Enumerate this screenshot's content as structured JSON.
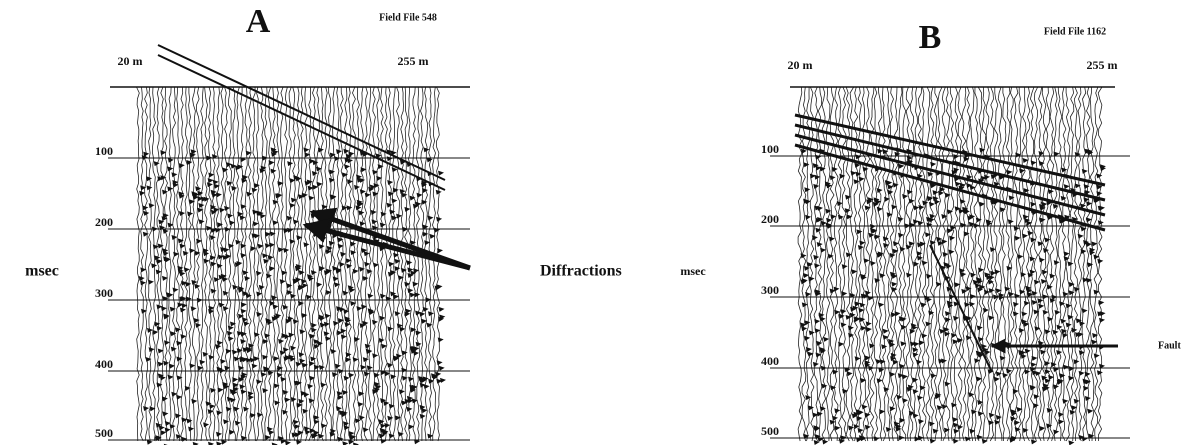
{
  "panels": [
    {
      "label": "A",
      "field_file": "Field File 548",
      "offset_start": "20 m",
      "offset_end": "255 m",
      "y_label": "msec",
      "time_ticks": [
        100,
        200,
        300,
        400,
        500
      ],
      "annotation": "Diffractions"
    },
    {
      "label": "B",
      "field_file": "Field File 1162",
      "offset_start": "20 m",
      "offset_end": "255 m",
      "y_label": "msec",
      "time_ticks": [
        100,
        200,
        300,
        400,
        500
      ],
      "annotation": "Fault"
    }
  ]
}
